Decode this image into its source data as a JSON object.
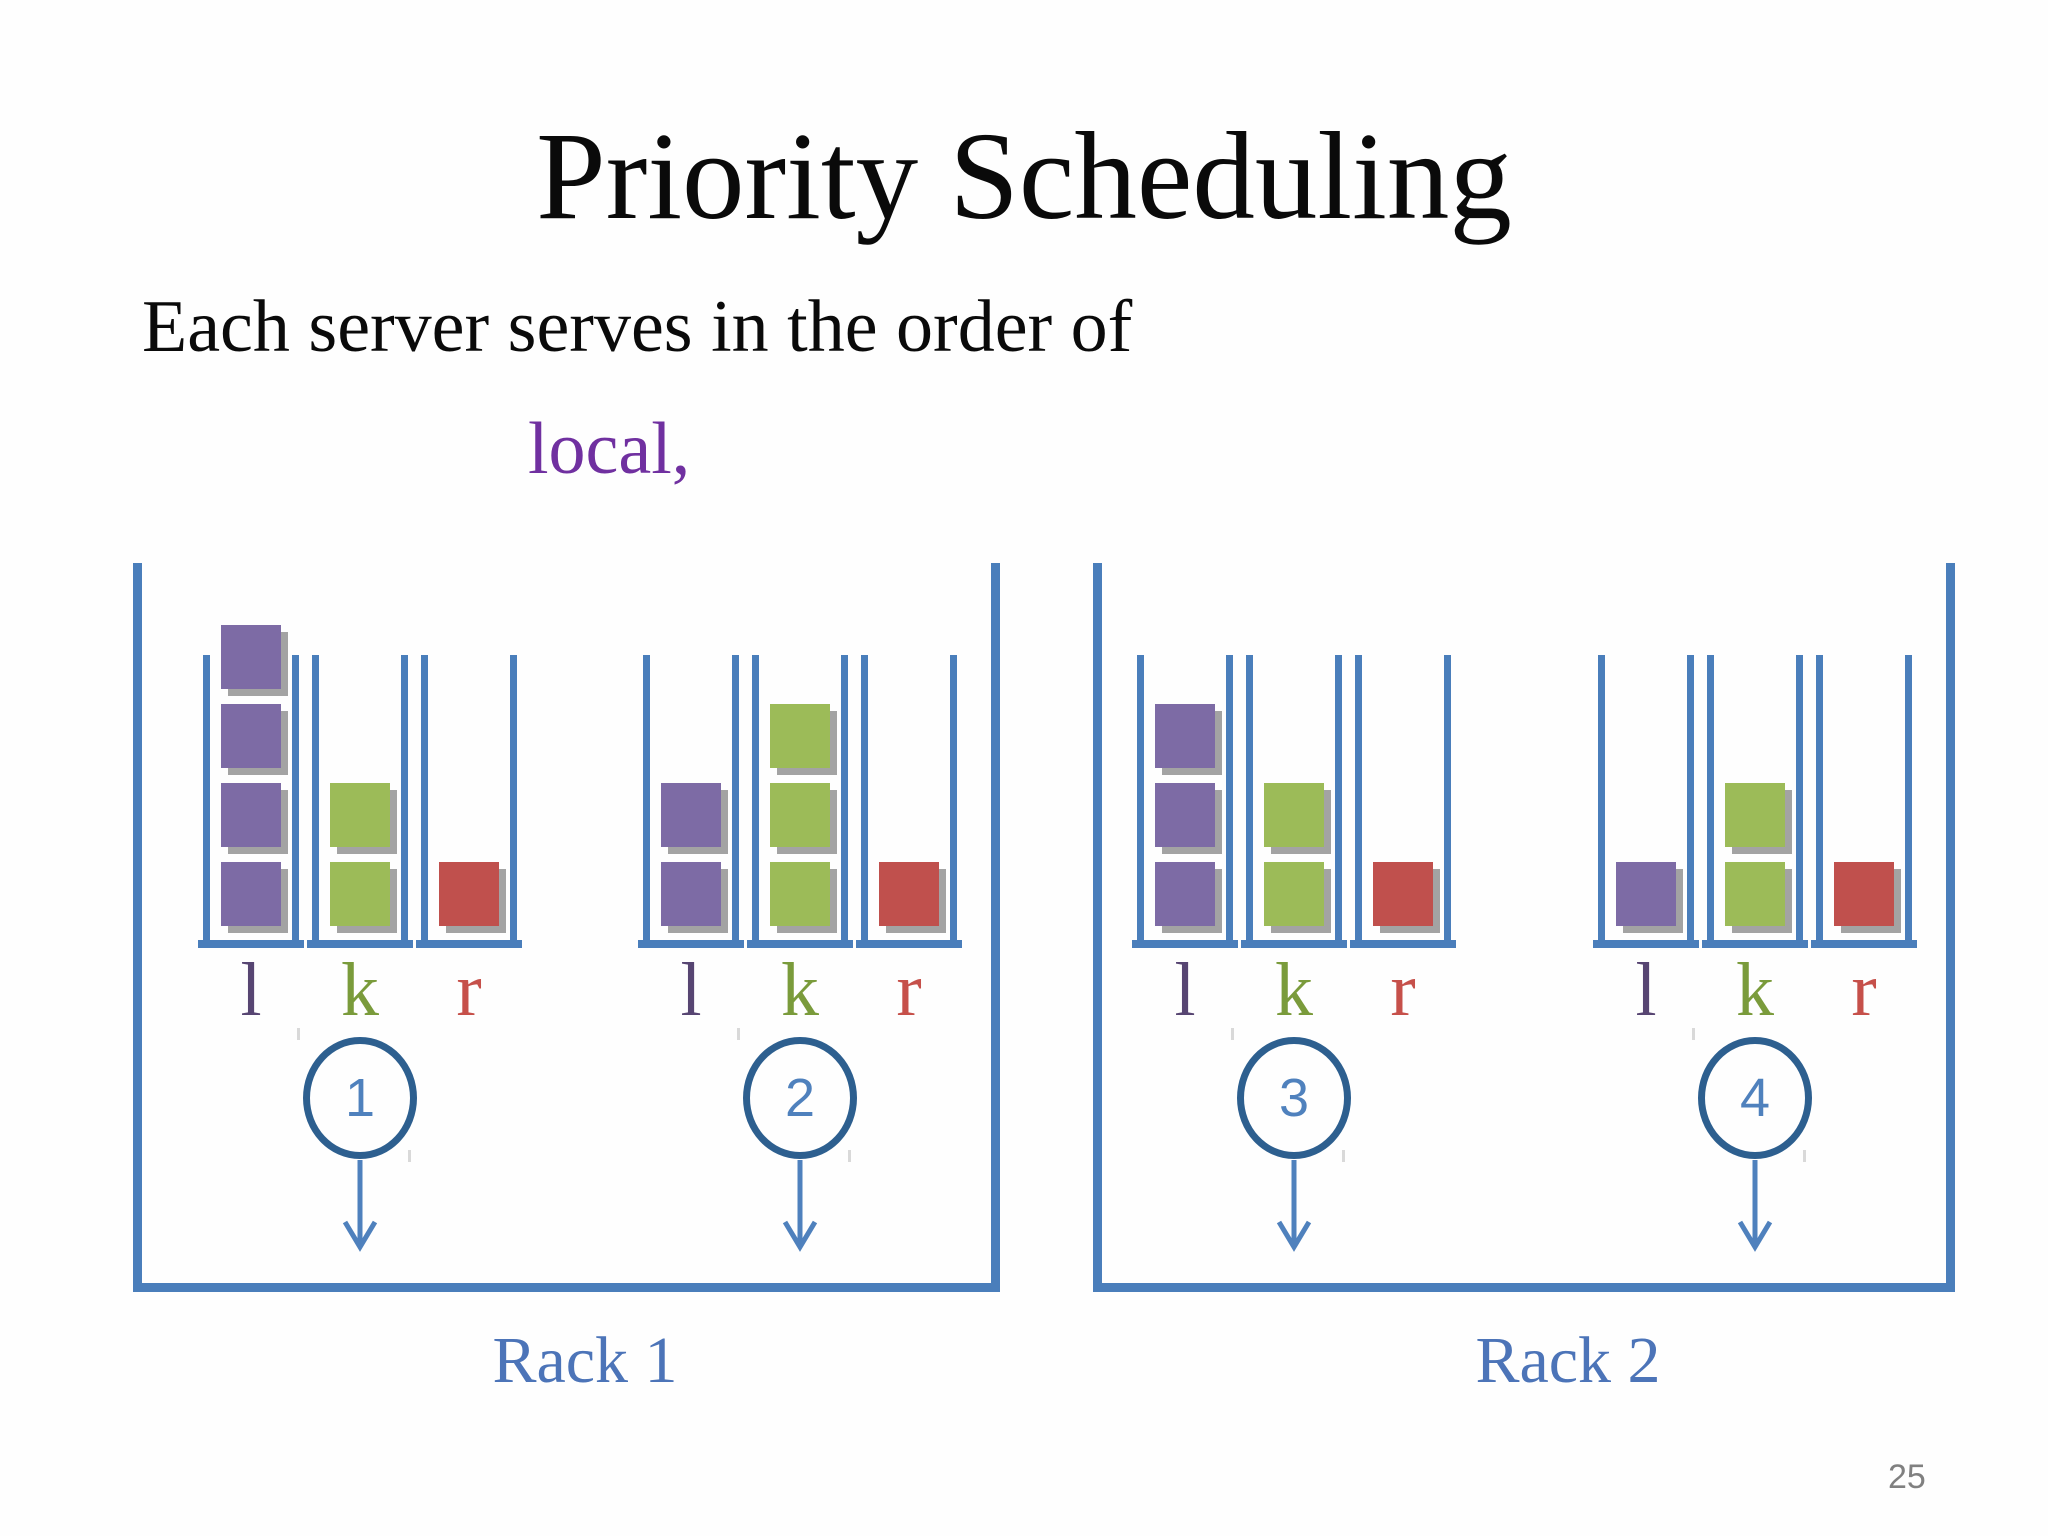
{
  "slide": {
    "title": "Priority Scheduling",
    "subtitle": "Each server serves in the order of",
    "highlight_word": "local,",
    "page_number": "25"
  },
  "queue_types": [
    {
      "key": "l",
      "label": "l",
      "square_color": "#7D6BA5",
      "label_color": "#574572"
    },
    {
      "key": "k",
      "label": "k",
      "square_color": "#9CBB58",
      "label_color": "#7A9B3B"
    },
    {
      "key": "r",
      "label": "r",
      "square_color": "#C0504D",
      "label_color": "#C6504A"
    }
  ],
  "racks": [
    {
      "label": "Rack 1",
      "servers": [
        {
          "number": "1",
          "queues": {
            "l": 4,
            "k": 2,
            "r": 1
          }
        },
        {
          "number": "2",
          "queues": {
            "l": 2,
            "k": 3,
            "r": 1
          }
        }
      ]
    },
    {
      "label": "Rack 2",
      "servers": [
        {
          "number": "3",
          "queues": {
            "l": 3,
            "k": 2,
            "r": 1
          }
        },
        {
          "number": "4",
          "queues": {
            "l": 1,
            "k": 2,
            "r": 1
          }
        }
      ]
    }
  ],
  "colors": {
    "structure_blue": "#4A7EBB",
    "circle_stroke": "#2D5F8F",
    "accent_blue": "#4F81BD",
    "rack_label_blue": "#4C74B8",
    "highlight_purple": "#7030A0",
    "shadow_gray": "#A3A3A3",
    "artifact_gray": "#B9B9B9",
    "page_number_gray": "#808080",
    "text_black": "#0a0a0a"
  }
}
